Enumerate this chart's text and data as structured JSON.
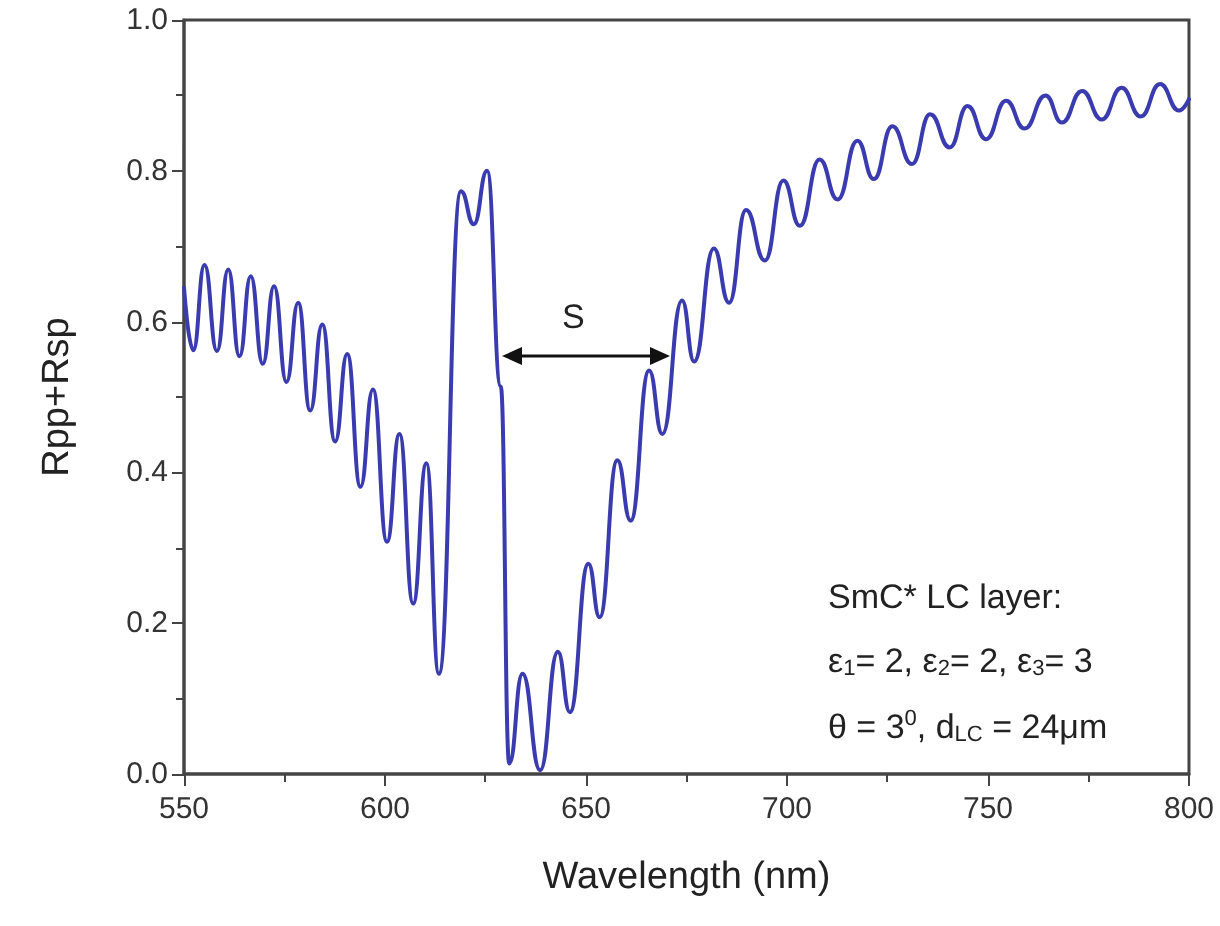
{
  "chart_data": {
    "type": "line",
    "xlabel": "Wavelength (nm)",
    "ylabel": "Rpp+Rsp",
    "xlim": [
      550,
      800
    ],
    "xticks": [
      550,
      600,
      650,
      700,
      750,
      800
    ],
    "ylim": [
      0,
      1
    ],
    "yticks": [
      {
        "value": 0,
        "label": "0.0"
      },
      {
        "value": 0.2,
        "label": "0.2"
      },
      {
        "value": 0.4,
        "label": "0.4"
      },
      {
        "value": 0.6,
        "label": "0.6"
      },
      {
        "value": 0.8,
        "label": "0.8"
      },
      {
        "value": 1,
        "label": "1.0"
      }
    ],
    "grid": false,
    "marker": "none",
    "line_style": "solid",
    "series": [
      {
        "color": "#3b3bb0",
        "x": [
          550,
          552.3,
          555.1,
          558.2,
          561.0,
          563.8,
          566.6,
          569.6,
          572.4,
          575.5,
          578.4,
          581.4,
          584.4,
          587.6,
          590.6,
          593.9,
          597.0,
          600.5,
          603.6,
          607.0,
          610.3,
          613.4,
          618.9,
          622.1,
          625.4,
          628.8,
          630.9,
          634.2,
          638.6,
          643.0,
          646.0,
          650.6,
          653.4,
          657.8,
          661.1,
          665.7,
          669.0,
          673.9,
          676.9,
          681.8,
          685.6,
          689.8,
          694.5,
          699.1,
          703.2,
          708.1,
          712.6,
          717.5,
          721.6,
          726.2,
          731.1,
          735.6,
          740.5,
          744.9,
          749.5,
          754.5,
          759.1,
          764.3,
          768.4,
          773.4,
          778.3,
          783.2,
          788.0,
          792.8,
          797.5,
          800
        ],
        "values": [
          0.645,
          0.562,
          0.675,
          0.561,
          0.669,
          0.554,
          0.66,
          0.544,
          0.647,
          0.52,
          0.625,
          0.482,
          0.596,
          0.441,
          0.557,
          0.381,
          0.51,
          0.308,
          0.451,
          0.226,
          0.412,
          0.133,
          0.773,
          0.729,
          0.8,
          0.514,
          0.014,
          0.133,
          0.005,
          0.162,
          0.082,
          0.279,
          0.208,
          0.416,
          0.336,
          0.535,
          0.451,
          0.628,
          0.547,
          0.697,
          0.625,
          0.748,
          0.681,
          0.787,
          0.727,
          0.815,
          0.762,
          0.84,
          0.789,
          0.859,
          0.809,
          0.875,
          0.831,
          0.886,
          0.842,
          0.893,
          0.856,
          0.9,
          0.864,
          0.906,
          0.868,
          0.91,
          0.872,
          0.915,
          0.88,
          0.895
        ]
      }
    ],
    "annotations": [
      "S",
      "SmC* LC layer:",
      "ε$_{1}$= 2, ε$_{2}$= 2, ε$_{3}$= 3",
      "θ = 3$^{0}$, d$_{LC}$ = 24μm"
    ]
  }
}
